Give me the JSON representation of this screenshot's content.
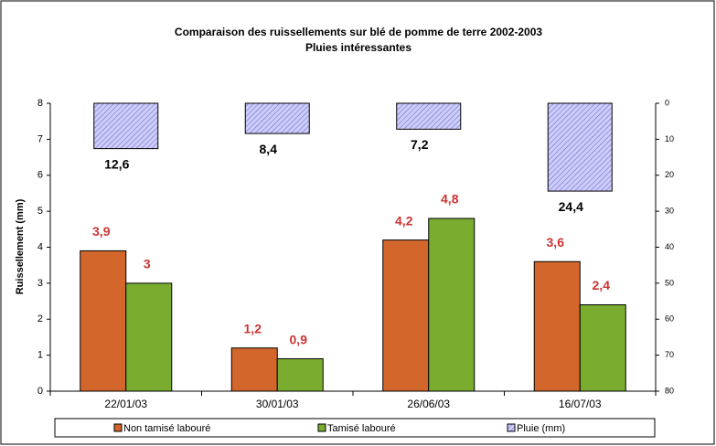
{
  "chart_data": {
    "type": "bar",
    "title": "Comparaison des ruissellements sur blé de pomme de terre 2002-2003",
    "subtitle": "Pluies intéressantes",
    "y_label": "Ruissellement (mm)",
    "categories": [
      "22/01/03",
      "30/01/03",
      "26/06/03",
      "16/07/03"
    ],
    "series": [
      {
        "name": "Non tamisé labouré",
        "color": "#d2662b",
        "values": [
          3.9,
          1.2,
          4.2,
          3.6
        ],
        "value_labels": [
          "3,9",
          "1,2",
          "4,2",
          "3,6"
        ]
      },
      {
        "name": "Tamisé labouré",
        "color": "#7aad2f",
        "values": [
          3,
          0.9,
          4.8,
          2.4
        ],
        "value_labels": [
          "3",
          "0,9",
          "4,8",
          "2,4"
        ]
      },
      {
        "name": "Pluie (mm)",
        "color": "#ccccff",
        "axis": "y2",
        "values": [
          12.6,
          8.4,
          7.2,
          24.4
        ],
        "value_labels": [
          "12,6",
          "8,4",
          "7,2",
          "24,4"
        ]
      }
    ],
    "ylim": [
      0,
      8
    ],
    "yticks": [
      0,
      1,
      2,
      3,
      4,
      5,
      6,
      7,
      8
    ],
    "y2lim": [
      0,
      80
    ],
    "y2ticks": [
      0,
      10,
      20,
      30,
      40,
      50,
      60,
      70,
      80
    ],
    "y2_reversed": true,
    "legend": "bottom",
    "grid": false
  }
}
